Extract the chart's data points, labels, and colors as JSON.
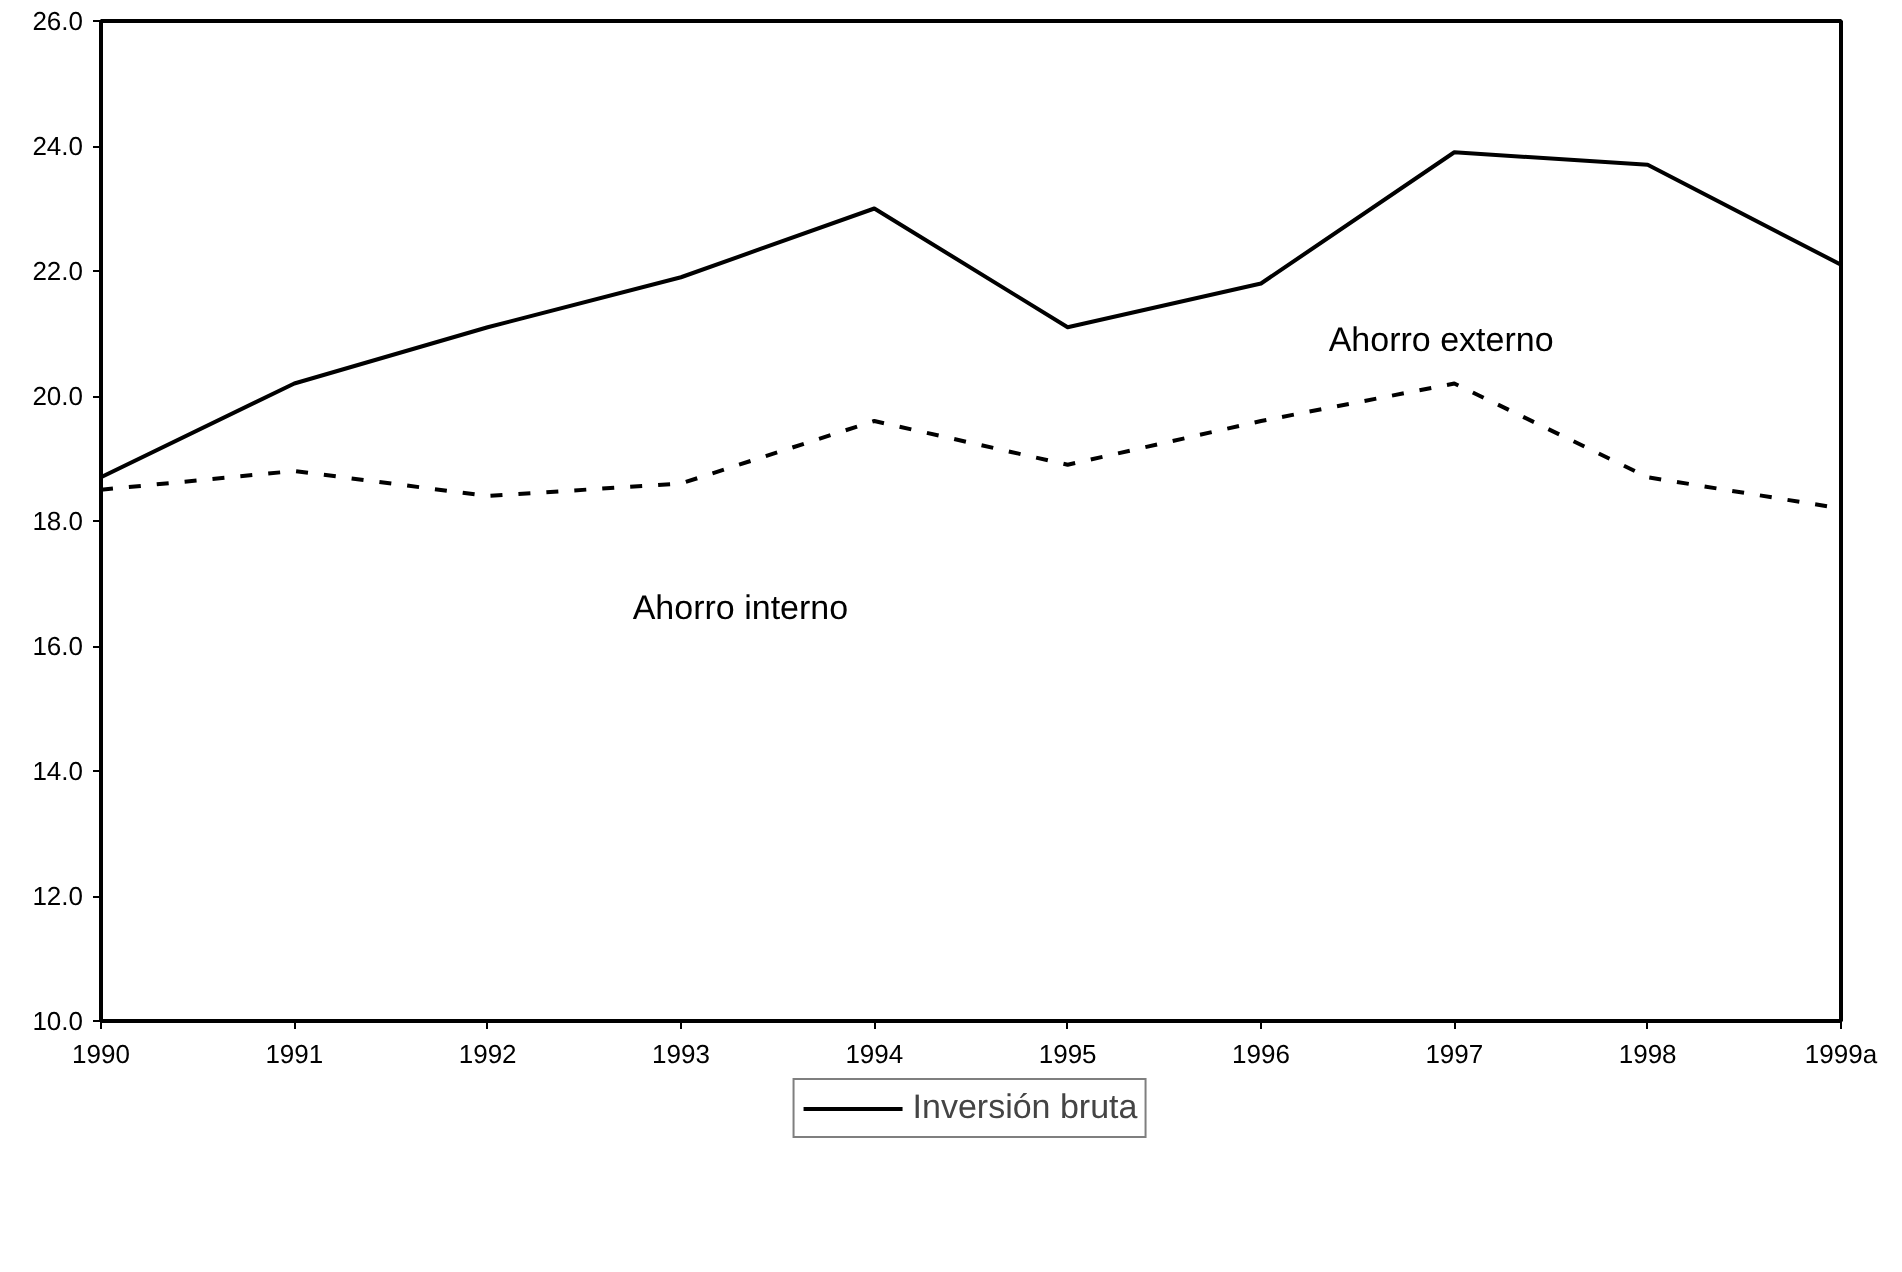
{
  "chart_data": {
    "type": "line",
    "categories": [
      "1990",
      "1991",
      "1992",
      "1993",
      "1994",
      "1995",
      "1996",
      "1997",
      "1998",
      "1999a"
    ],
    "series": [
      {
        "name": "Inversión bruta",
        "color": "#000000",
        "line_style": "solid",
        "values": [
          18.7,
          20.2,
          21.1,
          21.9,
          23.0,
          21.1,
          21.8,
          23.9,
          23.7,
          22.1
        ]
      },
      {
        "color": "#000000",
        "line_style": "dashed",
        "values": [
          18.5,
          18.8,
          18.4,
          18.6,
          19.6,
          18.9,
          19.6,
          20.2,
          18.7,
          18.2
        ]
      }
    ],
    "ylim": [
      10,
      26
    ],
    "yticks": [
      {
        "value": 10,
        "label": "10.0"
      },
      {
        "value": 12,
        "label": "12.0"
      },
      {
        "value": 14,
        "label": "14.0"
      },
      {
        "value": 16,
        "label": "16.0"
      },
      {
        "value": 18,
        "label": "18.0"
      },
      {
        "value": 20,
        "label": "20.0"
      },
      {
        "value": 22,
        "label": "22.0"
      },
      {
        "value": 24,
        "label": "24.0"
      },
      {
        "value": 26,
        "label": "26.0"
      }
    ],
    "annotations": [
      "Ahorro externo",
      "Ahorro interno"
    ],
    "legend": "bottom",
    "grid": false,
    "marker": "none"
  }
}
